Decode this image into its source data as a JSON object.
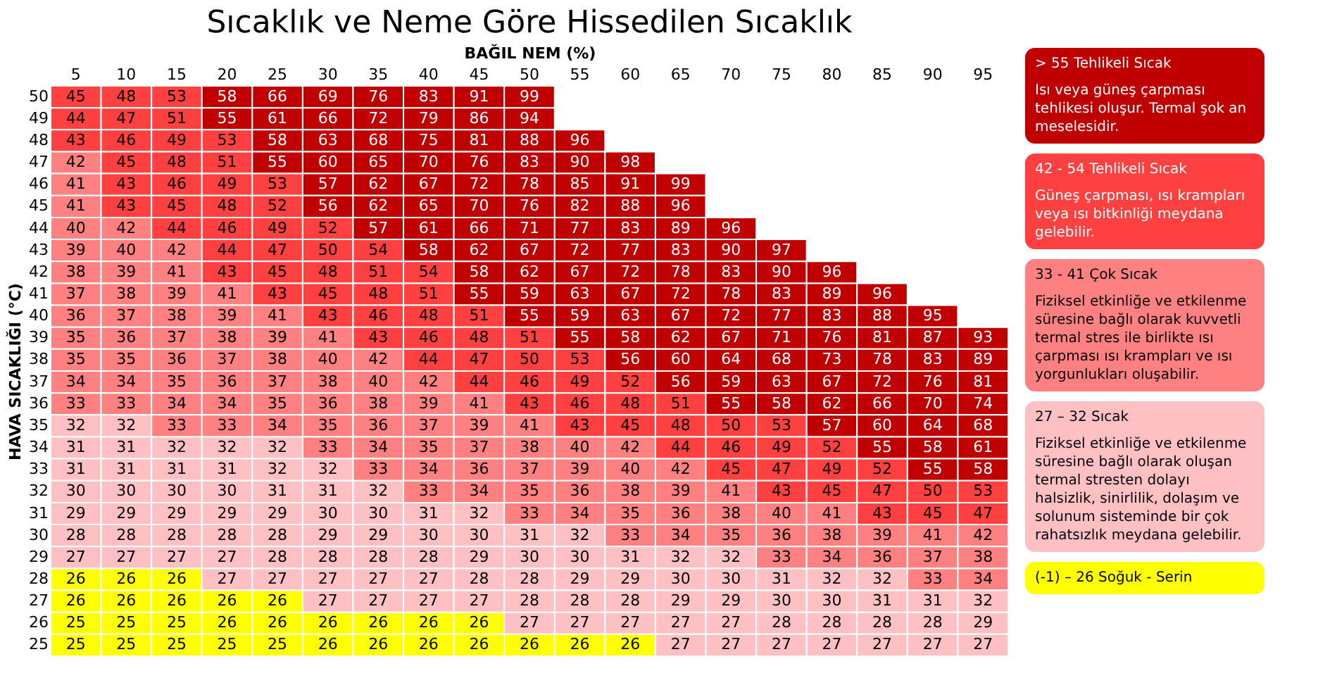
{
  "chart_data": {
    "type": "heatmap",
    "title": "Sıcaklık ve Neme Göre Hissedilen Sıcaklık",
    "xlabel": "BAĞIL NEM (%)",
    "ylabel": "HAVA SICAKLIĞI (°C)",
    "data_labels": true,
    "categories": [
      "5",
      "10",
      "15",
      "20",
      "25",
      "30",
      "35",
      "40",
      "45",
      "50",
      "55",
      "60",
      "65",
      "70",
      "75",
      "80",
      "85",
      "90",
      "95"
    ],
    "y_categories": [
      "50",
      "49",
      "48",
      "47",
      "46",
      "45",
      "44",
      "43",
      "42",
      "41",
      "40",
      "39",
      "38",
      "37",
      "36",
      "35",
      "34",
      "33",
      "32",
      "31",
      "30",
      "29",
      "28",
      "27",
      "26",
      "25"
    ],
    "cells": [
      [
        45,
        48,
        53,
        58,
        66,
        69,
        76,
        83,
        91,
        99,
        null,
        null,
        null,
        null,
        null,
        null,
        null,
        null,
        null
      ],
      [
        44,
        47,
        51,
        55,
        61,
        66,
        72,
        79,
        86,
        94,
        null,
        null,
        null,
        null,
        null,
        null,
        null,
        null,
        null
      ],
      [
        43,
        46,
        49,
        53,
        58,
        63,
        68,
        75,
        81,
        88,
        96,
        null,
        null,
        null,
        null,
        null,
        null,
        null,
        null
      ],
      [
        42,
        45,
        48,
        51,
        55,
        60,
        65,
        70,
        76,
        83,
        90,
        98,
        null,
        null,
        null,
        null,
        null,
        null,
        null
      ],
      [
        41,
        43,
        46,
        49,
        53,
        57,
        62,
        67,
        72,
        78,
        85,
        91,
        99,
        null,
        null,
        null,
        null,
        null,
        null
      ],
      [
        41,
        43,
        45,
        48,
        52,
        56,
        62,
        65,
        70,
        76,
        82,
        88,
        96,
        null,
        null,
        null,
        null,
        null,
        null
      ],
      [
        40,
        42,
        44,
        46,
        49,
        52,
        57,
        61,
        66,
        71,
        77,
        83,
        89,
        96,
        null,
        null,
        null,
        null,
        null
      ],
      [
        39,
        40,
        42,
        44,
        47,
        50,
        54,
        58,
        62,
        67,
        72,
        77,
        83,
        90,
        97,
        null,
        null,
        null,
        null
      ],
      [
        38,
        39,
        41,
        43,
        45,
        48,
        51,
        54,
        58,
        62,
        67,
        72,
        78,
        83,
        90,
        96,
        null,
        null,
        null
      ],
      [
        37,
        38,
        39,
        41,
        43,
        45,
        48,
        51,
        55,
        59,
        63,
        67,
        72,
        78,
        83,
        89,
        96,
        null,
        null
      ],
      [
        36,
        37,
        38,
        39,
        41,
        43,
        46,
        48,
        51,
        55,
        59,
        63,
        67,
        72,
        77,
        83,
        88,
        95,
        null
      ],
      [
        35,
        36,
        37,
        38,
        39,
        41,
        43,
        46,
        48,
        51,
        55,
        58,
        62,
        67,
        71,
        76,
        81,
        87,
        93
      ],
      [
        35,
        35,
        36,
        37,
        38,
        40,
        42,
        44,
        47,
        50,
        53,
        56,
        60,
        64,
        68,
        73,
        78,
        83,
        89
      ],
      [
        34,
        34,
        35,
        36,
        37,
        38,
        40,
        42,
        44,
        46,
        49,
        52,
        56,
        59,
        63,
        67,
        72,
        76,
        81
      ],
      [
        33,
        33,
        34,
        34,
        35,
        36,
        38,
        39,
        41,
        43,
        46,
        48,
        51,
        55,
        58,
        62,
        66,
        70,
        74
      ],
      [
        32,
        32,
        33,
        33,
        34,
        35,
        36,
        37,
        39,
        41,
        43,
        45,
        48,
        50,
        53,
        57,
        60,
        64,
        68
      ],
      [
        31,
        31,
        32,
        32,
        32,
        33,
        34,
        35,
        37,
        38,
        40,
        42,
        44,
        46,
        49,
        52,
        55,
        58,
        61
      ],
      [
        31,
        31,
        31,
        31,
        32,
        32,
        33,
        34,
        36,
        37,
        39,
        40,
        42,
        45,
        47,
        49,
        52,
        55,
        58
      ],
      [
        30,
        30,
        30,
        30,
        31,
        31,
        32,
        33,
        34,
        35,
        36,
        38,
        39,
        41,
        43,
        45,
        47,
        50,
        53
      ],
      [
        29,
        29,
        29,
        29,
        29,
        30,
        30,
        31,
        32,
        33,
        34,
        35,
        36,
        38,
        40,
        41,
        43,
        45,
        47
      ],
      [
        28,
        28,
        28,
        28,
        28,
        29,
        29,
        30,
        30,
        31,
        32,
        33,
        34,
        35,
        36,
        38,
        39,
        41,
        42
      ],
      [
        27,
        27,
        27,
        27,
        28,
        28,
        28,
        28,
        29,
        30,
        30,
        31,
        32,
        32,
        33,
        34,
        36,
        37,
        38
      ],
      [
        26,
        26,
        26,
        27,
        27,
        27,
        27,
        27,
        28,
        28,
        29,
        29,
        30,
        30,
        31,
        32,
        32,
        33,
        34
      ],
      [
        26,
        26,
        26,
        26,
        26,
        27,
        27,
        27,
        27,
        28,
        28,
        28,
        29,
        29,
        30,
        30,
        31,
        31,
        32
      ],
      [
        25,
        25,
        25,
        26,
        26,
        26,
        26,
        26,
        26,
        27,
        27,
        27,
        27,
        27,
        28,
        28,
        28,
        28,
        29
      ],
      [
        25,
        25,
        25,
        25,
        25,
        26,
        26,
        26,
        26,
        26,
        26,
        26,
        27,
        27,
        27,
        27,
        27,
        27,
        27
      ]
    ],
    "annotations": [
      "> 55  Tehlikeli Sıcak",
      "Isı veya güneş çarpması tehlikesi oluşur. Termal şok an meselesidir.",
      "42 - 54  Tehlikeli Sıcak",
      "Güneş çarpması, ısı krampları veya ısı bitkinliği meydana gelebilir.",
      "33 - 41  Çok Sıcak",
      "Fiziksel etkinliğe ve etkilenme süresine bağlı olarak kuvvetli termal stres ile birlikte ısı çarpması ısı krampları ve ısı yorgunlukları oluşabilir.",
      "27 – 32  Sıcak",
      "Fiziksel etkinliğe ve etkilenme süresine bağlı olarak oluşan termal stresten dolayı halsizlik, sinirlilik, dolaşım ve solunum sisteminde bir çok rahatsızlık meydana gelebilir.",
      "(-1) – 26  Soğuk - Serin"
    ]
  }
}
